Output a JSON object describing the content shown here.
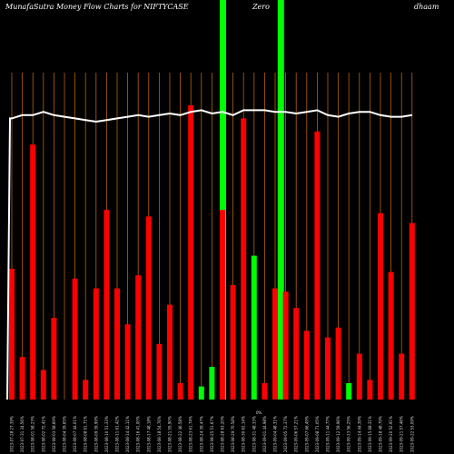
{
  "title": "MunafaSutra  Money Flow  Charts for NIFTYCASE",
  "title_right_parts": [
    "Zero",
    "dhaam"
  ],
  "colors": {
    "background": "#000000",
    "up": "#ff0000",
    "highlight": "#00ff00",
    "grid": "#b8620d",
    "price_line": "#ffffff"
  },
  "chart_data": {
    "type": "bar",
    "title": "MunafaSutra  Money Flow  Charts for NIFTYCASE",
    "ylim": [
      0,
      100
    ],
    "grid": "vertical",
    "series": [
      {
        "values": [
          40,
          13,
          78,
          9,
          25,
          0,
          37,
          6,
          34,
          58,
          34,
          23,
          38,
          56,
          17,
          29,
          5,
          90,
          4,
          10,
          58,
          35,
          86,
          44,
          5,
          34,
          33,
          28,
          21,
          82,
          19,
          22,
          5,
          14,
          6,
          57,
          39,
          14,
          54
        ],
        "colors": [
          "red",
          "red",
          "red",
          "red",
          "red",
          "red",
          "red",
          "red",
          "red",
          "red",
          "red",
          "red",
          "red",
          "red",
          "red",
          "red",
          "red",
          "red",
          "green",
          "green",
          "red",
          "red",
          "red",
          "green",
          "red",
          "red",
          "red",
          "red",
          "red",
          "red",
          "red",
          "red",
          "green",
          "red",
          "red",
          "red",
          "red",
          "red",
          "red"
        ]
      },
      {
        "type": "line",
        "values": [
          86,
          87,
          87,
          88,
          87,
          86.5,
          86,
          85.5,
          85,
          85.5,
          86,
          86.5,
          87,
          86.5,
          87,
          87.5,
          87,
          88,
          88.5,
          87.5,
          88,
          87,
          88.5,
          88.5,
          88.5,
          88,
          88,
          87.5,
          88,
          88.5,
          87,
          86.5,
          87.5,
          88,
          88,
          87,
          86.5,
          86.5,
          87
        ]
      }
    ],
    "highlights": [
      20,
      25.5
    ],
    "categories": [
      "2023-07-28 27.39%",
      "2023-07-31 34.56%",
      "2023-08-01 58.23%",
      "2023-08-02 72.41%",
      "2023-08-03 58.69%",
      "2023-08-04 39.65%",
      "2023-08-07 44.01%",
      "2023-08-08 61.71%",
      "2023-08-09 39.99%",
      "2023-08-10 51.33%",
      "2023-08-11 61.42%",
      "2023-08-14 42.11%",
      "2023-08-16 41.00%",
      "2023-08-17 48.18%",
      "2023-08-18 54.76%",
      "2023-08-21 55.90%",
      "2023-08-22 46.58%",
      "2023-08-23 61.74%",
      "2023-08-24 39.47%",
      "2023-08-25 51.67%",
      "2023-08-28 63.20%",
      "2023-08-29 70.58%",
      "2023-08-30 62.14%",
      "2023-08-31 48.33%",
      "2023-09-01 44.98%",
      "2023-09-04 48.31%",
      "2023-09-05 72.37%",
      "2023-09-06 57.21%",
      "2023-09-07 66.49%",
      "2023-09-08 71.05%",
      "2023-09-11 44.77%",
      "2023-09-12 59.96%",
      "2023-09-13 56.25%",
      "2023-09-14 44.39%",
      "2023-09-15 68.31%",
      "2023-09-18 48.79%",
      "2023-09-20 52.91%",
      "2023-09-21 57.46%",
      "2023-09-22 53.09%"
    ],
    "note_label": "0%"
  }
}
